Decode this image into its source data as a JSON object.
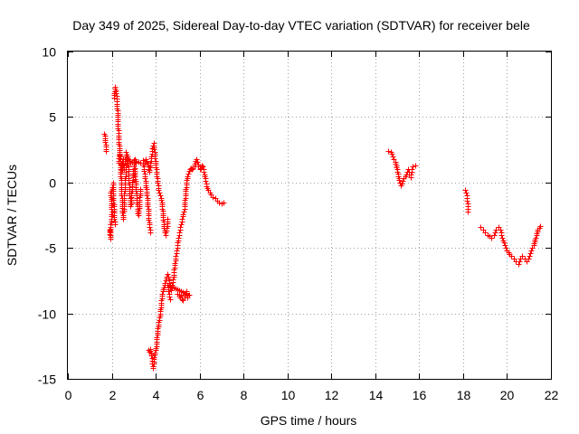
{
  "chart_data": {
    "type": "scatter",
    "title": "Day 349 of 2025, Sidereal Day-to-day VTEC variation (SDTVAR) for receiver bele",
    "xlabel": "GPS time / hours",
    "ylabel": "SDTVAR / TECUs",
    "xlim": [
      0,
      22
    ],
    "ylim": [
      -15,
      10
    ],
    "xticks": [
      0,
      2,
      4,
      6,
      8,
      10,
      12,
      14,
      16,
      18,
      20,
      22
    ],
    "yticks": [
      -15,
      -10,
      -5,
      0,
      5,
      10
    ],
    "xtick_labels": [
      "0",
      "2",
      "4",
      "6",
      "8",
      "10",
      "12",
      "14",
      "16",
      "18",
      "20",
      "22"
    ],
    "ytick_labels": [
      "-15",
      "-10",
      "-5",
      "0",
      "5",
      "10"
    ],
    "grid": true,
    "marker": "+",
    "color": "#ff0000",
    "series": [
      {
        "name": "SDTVAR",
        "segments": [
          [
            [
              1.65,
              3.7
            ],
            [
              1.7,
              3.4
            ],
            [
              1.72,
              2.4
            ]
          ],
          [
            [
              1.9,
              -3.6
            ],
            [
              1.93,
              -4.3
            ],
            [
              1.97,
              -2.6
            ],
            [
              2.0,
              -2.2
            ],
            [
              1.95,
              -0.8
            ],
            [
              2.02,
              -0.5
            ],
            [
              2.05,
              0.0
            ],
            [
              2.08,
              -1.5
            ],
            [
              2.12,
              -2.8
            ],
            [
              2.15,
              -3.2
            ]
          ],
          [
            [
              2.1,
              6.5
            ],
            [
              2.14,
              7.3
            ],
            [
              2.18,
              7.0
            ],
            [
              2.2,
              6.8
            ],
            [
              2.22,
              6.2
            ],
            [
              2.25,
              5.5
            ],
            [
              2.27,
              4.5
            ],
            [
              2.3,
              3.6
            ],
            [
              2.33,
              2.8
            ],
            [
              2.36,
              2.0
            ],
            [
              2.4,
              1.0
            ],
            [
              2.42,
              0.0
            ],
            [
              2.45,
              -1.0
            ],
            [
              2.48,
              -2.3
            ],
            [
              2.52,
              -2.8
            ],
            [
              2.55,
              -1.5
            ],
            [
              2.58,
              -0.5
            ],
            [
              2.62,
              0.5
            ],
            [
              2.66,
              1.5
            ],
            [
              2.7,
              2.0
            ],
            [
              2.74,
              1.2
            ],
            [
              2.78,
              0.0
            ],
            [
              2.82,
              -1.0
            ],
            [
              2.86,
              -1.8
            ],
            [
              2.9,
              -0.8
            ],
            [
              2.95,
              0.2
            ],
            [
              3.0,
              1.2
            ],
            [
              3.05,
              1.8
            ],
            [
              3.1,
              1.5
            ]
          ],
          [
            [
              2.3,
              1.5
            ],
            [
              2.35,
              2.2
            ],
            [
              2.4,
              1.8
            ],
            [
              2.45,
              0.8
            ],
            [
              2.5,
              1.8
            ],
            [
              2.55,
              1.0
            ],
            [
              2.6,
              1.8
            ],
            [
              2.65,
              2.3
            ],
            [
              2.75,
              1.8
            ],
            [
              2.85,
              1.5
            ],
            [
              3.0,
              1.7
            ],
            [
              3.1,
              -0.5
            ],
            [
              3.15,
              -1.5
            ],
            [
              3.2,
              -2.5
            ],
            [
              3.25,
              -1.8
            ],
            [
              3.3,
              -0.5
            ]
          ],
          [
            [
              3.2,
              1.6
            ],
            [
              3.3,
              1.5
            ],
            [
              3.4,
              1.7
            ],
            [
              3.45,
              1.2
            ],
            [
              3.5,
              0.5
            ],
            [
              3.55,
              -0.2
            ],
            [
              3.6,
              -1.0
            ],
            [
              3.65,
              -2.0
            ],
            [
              3.7,
              -3.2
            ],
            [
              3.75,
              -3.8
            ]
          ],
          [
            [
              3.5,
              1.5
            ],
            [
              3.55,
              1.8
            ],
            [
              3.6,
              1.6
            ],
            [
              3.65,
              1.2
            ],
            [
              3.7,
              0.8
            ],
            [
              3.75,
              1.3
            ],
            [
              3.8,
              2.0
            ],
            [
              3.85,
              2.6
            ],
            [
              3.9,
              3.0
            ],
            [
              3.95,
              2.2
            ],
            [
              4.0,
              1.5
            ],
            [
              4.05,
              0.5
            ],
            [
              4.1,
              -0.2
            ],
            [
              4.15,
              -0.8
            ],
            [
              4.2,
              -1.0
            ],
            [
              4.25,
              -1.2
            ],
            [
              4.3,
              -2.0
            ],
            [
              4.35,
              -3.0
            ],
            [
              4.4,
              -3.8
            ],
            [
              4.45,
              -4.0
            ],
            [
              4.5,
              -3.5
            ],
            [
              4.55,
              -2.8
            ]
          ],
          [
            [
              3.65,
              -12.8
            ],
            [
              3.7,
              -12.9
            ],
            [
              3.75,
              -12.7
            ],
            [
              3.8,
              -13.2
            ],
            [
              3.85,
              -13.8
            ],
            [
              3.88,
              -14.2
            ],
            [
              3.92,
              -13.5
            ],
            [
              3.95,
              -13.0
            ],
            [
              4.0,
              -12.8
            ],
            [
              4.03,
              -12.5
            ],
            [
              4.05,
              -11.8
            ],
            [
              4.1,
              -11.0
            ],
            [
              4.15,
              -10.5
            ],
            [
              4.2,
              -10.0
            ],
            [
              4.25,
              -9.2
            ],
            [
              4.3,
              -8.5
            ],
            [
              4.35,
              -8.0
            ],
            [
              4.4,
              -7.8
            ],
            [
              4.45,
              -7.5
            ],
            [
              4.5,
              -7.2
            ],
            [
              4.55,
              -7.0
            ],
            [
              4.6,
              -7.5
            ],
            [
              4.65,
              -7.8
            ],
            [
              4.7,
              -8.2
            ],
            [
              4.75,
              -7.8
            ],
            [
              4.8,
              -7.2
            ],
            [
              4.85,
              -6.5
            ],
            [
              4.9,
              -5.8
            ],
            [
              4.95,
              -5.2
            ],
            [
              5.0,
              -4.6
            ],
            [
              5.05,
              -4.0
            ],
            [
              5.1,
              -3.6
            ],
            [
              5.15,
              -3.2
            ],
            [
              5.2,
              -2.8
            ],
            [
              5.25,
              -2.4
            ],
            [
              5.3,
              -2.0
            ],
            [
              5.35,
              -1.0
            ],
            [
              5.4,
              0.0
            ],
            [
              5.45,
              0.5
            ],
            [
              5.5,
              0.9
            ],
            [
              5.55,
              1.0
            ],
            [
              5.6,
              1.1
            ],
            [
              5.65,
              1.0
            ],
            [
              5.7,
              1.1
            ],
            [
              5.75,
              1.2
            ],
            [
              5.8,
              1.5
            ],
            [
              5.85,
              1.8
            ],
            [
              5.9,
              1.6
            ],
            [
              5.95,
              1.2
            ],
            [
              6.0,
              1.0
            ],
            [
              6.05,
              1.1
            ],
            [
              6.1,
              1.3
            ],
            [
              6.15,
              1.2
            ],
            [
              6.2,
              0.8
            ],
            [
              6.25,
              0.3
            ],
            [
              6.3,
              -0.3
            ],
            [
              6.4,
              -0.6
            ],
            [
              6.5,
              -0.9
            ],
            [
              6.6,
              -1.1
            ],
            [
              6.7,
              -1.2
            ],
            [
              6.8,
              -1.4
            ],
            [
              6.9,
              -1.5
            ],
            [
              7.0,
              -1.6
            ],
            [
              7.1,
              -1.5
            ]
          ],
          [
            [
              5.0,
              -8.5
            ],
            [
              5.1,
              -8.8
            ],
            [
              5.15,
              -8.6
            ],
            [
              5.2,
              -8.9
            ],
            [
              5.25,
              -9.0
            ],
            [
              5.3,
              -8.8
            ],
            [
              5.35,
              -8.5
            ],
            [
              5.4,
              -8.3
            ],
            [
              5.45,
              -8.8
            ],
            [
              5.5,
              -8.6
            ],
            [
              4.55,
              -7.8
            ],
            [
              4.6,
              -8.5
            ],
            [
              4.65,
              -8.9
            ]
          ],
          [
            [
              14.6,
              2.4
            ],
            [
              14.7,
              2.3
            ],
            [
              14.75,
              2.2
            ],
            [
              14.8,
              2.0
            ],
            [
              14.85,
              1.8
            ],
            [
              14.9,
              1.6
            ],
            [
              14.95,
              1.3
            ],
            [
              15.0,
              1.0
            ],
            [
              15.05,
              0.5
            ],
            [
              15.1,
              0.0
            ],
            [
              15.15,
              -0.2
            ],
            [
              15.2,
              -0.1
            ],
            [
              15.3,
              0.3
            ],
            [
              15.4,
              0.6
            ],
            [
              15.5,
              1.0
            ],
            [
              15.55,
              0.6
            ],
            [
              15.6,
              0.4
            ],
            [
              15.65,
              0.8
            ],
            [
              15.7,
              1.2
            ],
            [
              15.8,
              1.3
            ]
          ],
          [
            [
              18.1,
              -0.6
            ],
            [
              18.12,
              -0.8
            ],
            [
              18.15,
              -1.0
            ],
            [
              18.18,
              -1.4
            ],
            [
              18.2,
              -1.8
            ],
            [
              18.23,
              -2.2
            ]
          ],
          [
            [
              18.8,
              -3.4
            ],
            [
              18.9,
              -3.6
            ],
            [
              19.0,
              -3.8
            ],
            [
              19.1,
              -4.0
            ],
            [
              19.2,
              -4.1
            ],
            [
              19.3,
              -4.2
            ],
            [
              19.4,
              -4.0
            ],
            [
              19.5,
              -3.6
            ],
            [
              19.6,
              -3.4
            ],
            [
              19.7,
              -3.6
            ],
            [
              19.75,
              -4.0
            ],
            [
              19.8,
              -4.4
            ],
            [
              19.9,
              -4.8
            ],
            [
              20.0,
              -5.2
            ],
            [
              20.1,
              -5.5
            ],
            [
              20.2,
              -5.6
            ],
            [
              20.3,
              -5.8
            ],
            [
              20.4,
              -6.0
            ],
            [
              20.5,
              -6.2
            ],
            [
              20.6,
              -5.8
            ],
            [
              20.7,
              -5.6
            ],
            [
              20.8,
              -5.8
            ],
            [
              20.9,
              -6.0
            ],
            [
              21.0,
              -5.6
            ],
            [
              21.1,
              -5.2
            ],
            [
              21.2,
              -4.8
            ],
            [
              21.3,
              -4.2
            ],
            [
              21.4,
              -3.6
            ],
            [
              21.5,
              -3.3
            ]
          ]
        ]
      }
    ]
  }
}
